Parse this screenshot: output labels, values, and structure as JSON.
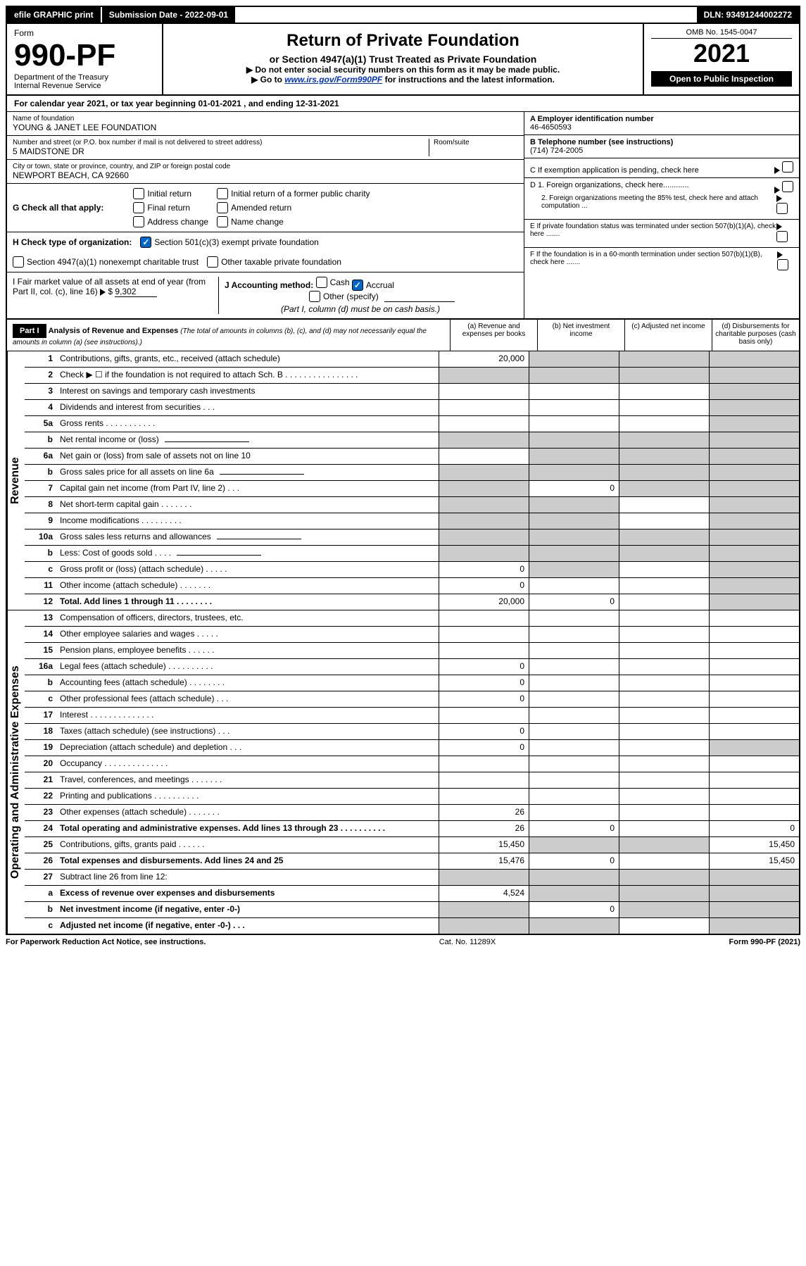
{
  "topbar": {
    "efile": "efile GRAPHIC print",
    "submission_label": "Submission Date - 2022-09-01",
    "dln": "DLN: 93491244002272"
  },
  "header": {
    "form_label": "Form",
    "form_number": "990-PF",
    "dept": "Department of the Treasury",
    "irs": "Internal Revenue Service",
    "title": "Return of Private Foundation",
    "subtitle": "or Section 4947(a)(1) Trust Treated as Private Foundation",
    "instr1": "▶ Do not enter social security numbers on this form as it may be made public.",
    "instr2_pre": "▶ Go to ",
    "instr2_link": "www.irs.gov/Form990PF",
    "instr2_post": " for instructions and the latest information.",
    "omb": "OMB No. 1545-0047",
    "year": "2021",
    "open": "Open to Public Inspection"
  },
  "calyear": "For calendar year 2021, or tax year beginning 01-01-2021            , and ending 12-31-2021",
  "foundation": {
    "name_label": "Name of foundation",
    "name": "YOUNG & JANET LEE FOUNDATION",
    "addr_label": "Number and street (or P.O. box number if mail is not delivered to street address)",
    "room_label": "Room/suite",
    "addr": "5 MAIDSTONE DR",
    "city_label": "City or town, state or province, country, and ZIP or foreign postal code",
    "city": "NEWPORT BEACH, CA  92660",
    "ein_label": "A Employer identification number",
    "ein": "46-4650593",
    "phone_label": "B Telephone number (see instructions)",
    "phone": "(714) 724-2005",
    "c_label": "C If exemption application is pending, check here",
    "d1_label": "D 1. Foreign organizations, check here............",
    "d2_label": "2. Foreign organizations meeting the 85% test, check here and attach computation ...",
    "e_label": "E  If private foundation status was terminated under section 507(b)(1)(A), check here .......",
    "f_label": "F  If the foundation is in a 60-month termination under section 507(b)(1)(B), check here .......",
    "g_label": "G Check all that apply:",
    "g_opts": {
      "initial": "Initial return",
      "initial_former": "Initial return of a former public charity",
      "final": "Final return",
      "amended": "Amended return",
      "address": "Address change",
      "name": "Name change"
    },
    "h_label": "H Check type of organization:",
    "h_501c3": "Section 501(c)(3) exempt private foundation",
    "h_4947": "Section 4947(a)(1) nonexempt charitable trust",
    "h_other": "Other taxable private foundation",
    "i_label": "I Fair market value of all assets at end of year (from Part II, col. (c), line 16)",
    "i_value": "9,302",
    "j_label": "J Accounting method:",
    "j_cash": "Cash",
    "j_accrual": "Accrual",
    "j_other": "Other (specify)",
    "j_note": "(Part I, column (d) must be on cash basis.)"
  },
  "part1": {
    "label": "Part I",
    "title": "Analysis of Revenue and Expenses",
    "title_note": "(The total of amounts in columns (b), (c), and (d) may not necessarily equal the amounts in column (a) (see instructions).)",
    "col_a": "(a)   Revenue and expenses per books",
    "col_b": "(b)   Net investment income",
    "col_c": "(c)   Adjusted net income",
    "col_d": "(d)   Disbursements for charitable purposes (cash basis only)"
  },
  "sections": {
    "revenue": "Revenue",
    "expenses": "Operating and Administrative Expenses"
  },
  "lines": [
    {
      "num": "1",
      "desc": "Contributions, gifts, grants, etc., received (attach schedule)",
      "a": "20,000",
      "b": "shade",
      "c": "shade",
      "d": "shade"
    },
    {
      "num": "2",
      "desc": "Check ▶ ☐ if the foundation is not required to attach Sch. B   .  .  .  .  .  .  .  .  .  .  .  .  .  .  .  .",
      "a": "shade",
      "b": "shade",
      "c": "shade",
      "d": "shade"
    },
    {
      "num": "3",
      "desc": "Interest on savings and temporary cash investments",
      "a": "",
      "b": "",
      "c": "",
      "d": "shade"
    },
    {
      "num": "4",
      "desc": "Dividends and interest from securities    .   .   .",
      "a": "",
      "b": "",
      "c": "",
      "d": "shade"
    },
    {
      "num": "5a",
      "desc": "Gross rents     .   .   .    .   .   .   .   .   .   .   .",
      "a": "",
      "b": "",
      "c": "",
      "d": "shade"
    },
    {
      "num": "b",
      "desc": "Net rental income or (loss)",
      "inline": true,
      "a": "shade",
      "b": "shade",
      "c": "shade",
      "d": "shade"
    },
    {
      "num": "6a",
      "desc": "Net gain or (loss) from sale of assets not on line 10",
      "a": "",
      "b": "shade",
      "c": "shade",
      "d": "shade"
    },
    {
      "num": "b",
      "desc": "Gross sales price for all assets on line 6a",
      "inline": true,
      "a": "shade",
      "b": "shade",
      "c": "shade",
      "d": "shade"
    },
    {
      "num": "7",
      "desc": "Capital gain net income (from Part IV, line 2)   .   .   .",
      "a": "shade",
      "b": "0",
      "c": "shade",
      "d": "shade"
    },
    {
      "num": "8",
      "desc": "Net short-term capital gain   .   .   .   .   .   .   .",
      "a": "shade",
      "b": "shade",
      "c": "",
      "d": "shade"
    },
    {
      "num": "9",
      "desc": "Income modifications  .   .   .   .   .   .   .   .   .",
      "a": "shade",
      "b": "shade",
      "c": "",
      "d": "shade"
    },
    {
      "num": "10a",
      "desc": "Gross sales less returns and allowances",
      "inline": true,
      "a": "shade",
      "b": "shade",
      "c": "shade",
      "d": "shade"
    },
    {
      "num": "b",
      "desc": "Less: Cost of goods sold     .   .   .   .",
      "inline": true,
      "a": "shade",
      "b": "shade",
      "c": "shade",
      "d": "shade"
    },
    {
      "num": "c",
      "desc": "Gross profit or (loss) (attach schedule)     .   .   .   .   .",
      "a": "0",
      "b": "shade",
      "c": "",
      "d": "shade"
    },
    {
      "num": "11",
      "desc": "Other income (attach schedule)    .   .   .   .   .   .   .",
      "a": "0",
      "b": "",
      "c": "",
      "d": "shade"
    },
    {
      "num": "12",
      "desc": "Total. Add lines 1 through 11   .   .   .   .   .   .   .   .",
      "bold": true,
      "a": "20,000",
      "b": "0",
      "c": "",
      "d": "shade"
    }
  ],
  "exp_lines": [
    {
      "num": "13",
      "desc": "Compensation of officers, directors, trustees, etc.",
      "a": "",
      "b": "",
      "c": "",
      "d": ""
    },
    {
      "num": "14",
      "desc": "Other employee salaries and wages   .   .   .   .   .",
      "a": "",
      "b": "",
      "c": "",
      "d": ""
    },
    {
      "num": "15",
      "desc": "Pension plans, employee benefits  .   .   .   .   .   .",
      "a": "",
      "b": "",
      "c": "",
      "d": ""
    },
    {
      "num": "16a",
      "desc": "Legal fees (attach schedule) .  .  .  .  .  .  .  .  .  .",
      "a": "0",
      "b": "",
      "c": "",
      "d": ""
    },
    {
      "num": "b",
      "desc": "Accounting fees (attach schedule) .  .  .  .  .  .  .  .",
      "a": "0",
      "b": "",
      "c": "",
      "d": ""
    },
    {
      "num": "c",
      "desc": "Other professional fees (attach schedule)    .   .   .",
      "a": "0",
      "b": "",
      "c": "",
      "d": ""
    },
    {
      "num": "17",
      "desc": "Interest  .   .   .   .   .   .   .   .   .   .   .   .   .   .",
      "a": "",
      "b": "",
      "c": "",
      "d": ""
    },
    {
      "num": "18",
      "desc": "Taxes (attach schedule) (see instructions)     .   .   .",
      "a": "0",
      "b": "",
      "c": "",
      "d": ""
    },
    {
      "num": "19",
      "desc": "Depreciation (attach schedule) and depletion    .   .   .",
      "a": "0",
      "b": "",
      "c": "",
      "d": "shade"
    },
    {
      "num": "20",
      "desc": "Occupancy .   .   .   .   .   .   .   .   .   .   .   .   .   .",
      "a": "",
      "b": "",
      "c": "",
      "d": ""
    },
    {
      "num": "21",
      "desc": "Travel, conferences, and meetings .   .   .   .   .   .   .",
      "a": "",
      "b": "",
      "c": "",
      "d": ""
    },
    {
      "num": "22",
      "desc": "Printing and publications .   .   .   .   .   .   .   .   .   .",
      "a": "",
      "b": "",
      "c": "",
      "d": ""
    },
    {
      "num": "23",
      "desc": "Other expenses (attach schedule) .   .   .   .   .   .   .",
      "a": "26",
      "b": "",
      "c": "",
      "d": ""
    },
    {
      "num": "24",
      "desc": "Total operating and administrative expenses. Add lines 13 through 23  .   .   .   .   .   .   .   .   .   .",
      "bold": true,
      "a": "26",
      "b": "0",
      "c": "",
      "d": "0"
    },
    {
      "num": "25",
      "desc": "Contributions, gifts, grants paid     .   .   .   .   .   .",
      "a": "15,450",
      "b": "shade",
      "c": "shade",
      "d": "15,450"
    },
    {
      "num": "26",
      "desc": "Total expenses and disbursements. Add lines 24 and 25",
      "bold": true,
      "a": "15,476",
      "b": "0",
      "c": "",
      "d": "15,450"
    },
    {
      "num": "27",
      "desc": "Subtract line 26 from line 12:",
      "a": "shade",
      "b": "shade",
      "c": "shade",
      "d": "shade"
    },
    {
      "num": "a",
      "desc": "Excess of revenue over expenses and disbursements",
      "bold": true,
      "a": "4,524",
      "b": "shade",
      "c": "shade",
      "d": "shade"
    },
    {
      "num": "b",
      "desc": "Net investment income (if negative, enter -0-)",
      "bold": true,
      "a": "shade",
      "b": "0",
      "c": "shade",
      "d": "shade"
    },
    {
      "num": "c",
      "desc": "Adjusted net income (if negative, enter -0-)   .   .   .",
      "bold": true,
      "a": "shade",
      "b": "shade",
      "c": "",
      "d": "shade"
    }
  ],
  "footer": {
    "left": "For Paperwork Reduction Act Notice, see instructions.",
    "center": "Cat. No. 11289X",
    "right": "Form 990-PF (2021)"
  }
}
